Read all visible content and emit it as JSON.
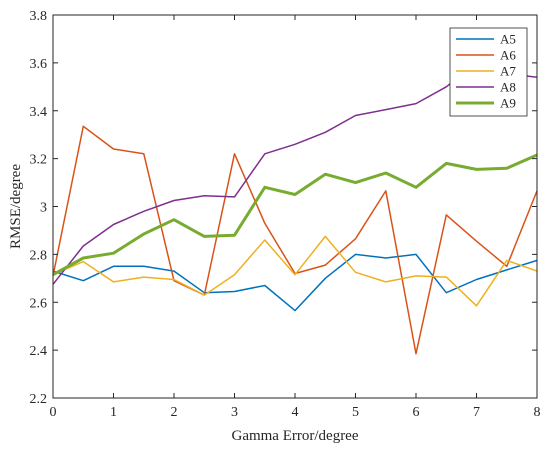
{
  "chart_data": {
    "type": "line",
    "title": "",
    "xlabel": "Gamma Error/degree",
    "ylabel": "RMSE/degree",
    "xlim": [
      0,
      8
    ],
    "ylim": [
      2.2,
      3.8
    ],
    "xticks": [
      0,
      1,
      2,
      3,
      4,
      5,
      6,
      7,
      8
    ],
    "yticks": [
      2.2,
      2.4,
      2.6,
      2.8,
      3,
      3.2,
      3.4,
      3.6,
      3.8
    ],
    "xtick_labels": [
      "0",
      "1",
      "2",
      "3",
      "4",
      "5",
      "6",
      "7",
      "8"
    ],
    "ytick_labels": [
      "2.2",
      "2.4",
      "2.6",
      "2.8",
      "3",
      "3.2",
      "3.4",
      "3.6",
      "3.8"
    ],
    "grid": false,
    "legend_position": "top-right",
    "x": [
      0,
      0.5,
      1,
      1.5,
      2,
      2.5,
      3,
      3.5,
      4,
      4.5,
      5,
      5.5,
      6,
      6.5,
      7,
      7.5,
      8
    ],
    "series": [
      {
        "name": "A5",
        "color": "#0072BD",
        "width": 1.5,
        "values": [
          2.73,
          2.69,
          2.75,
          2.75,
          2.73,
          2.64,
          2.645,
          2.67,
          2.565,
          2.7,
          2.8,
          2.785,
          2.8,
          2.64,
          2.695,
          2.735,
          2.775
        ]
      },
      {
        "name": "A6",
        "color": "#D95319",
        "width": 1.5,
        "values": [
          2.71,
          3.335,
          3.24,
          3.22,
          2.69,
          2.63,
          3.22,
          2.93,
          2.72,
          2.755,
          2.865,
          3.065,
          2.385,
          2.965,
          2.855,
          2.75,
          3.065
        ]
      },
      {
        "name": "A7",
        "color": "#EDB120",
        "width": 1.5,
        "values": [
          2.715,
          2.77,
          2.685,
          2.705,
          2.695,
          2.63,
          2.715,
          2.86,
          2.715,
          2.875,
          2.725,
          2.685,
          2.71,
          2.705,
          2.585,
          2.775,
          2.73
        ]
      },
      {
        "name": "A8",
        "color": "#7E2F8E",
        "width": 1.5,
        "values": [
          2.675,
          2.835,
          2.925,
          2.98,
          3.025,
          3.045,
          3.04,
          3.22,
          3.26,
          3.31,
          3.38,
          3.405,
          3.43,
          3.5,
          3.6,
          3.555,
          3.54
        ]
      },
      {
        "name": "A9",
        "color": "#77AC30",
        "width": 3,
        "values": [
          2.715,
          2.785,
          2.805,
          2.885,
          2.945,
          2.875,
          2.88,
          3.08,
          3.05,
          3.135,
          3.1,
          3.14,
          3.08,
          3.18,
          3.155,
          3.16,
          3.215
        ]
      }
    ]
  }
}
